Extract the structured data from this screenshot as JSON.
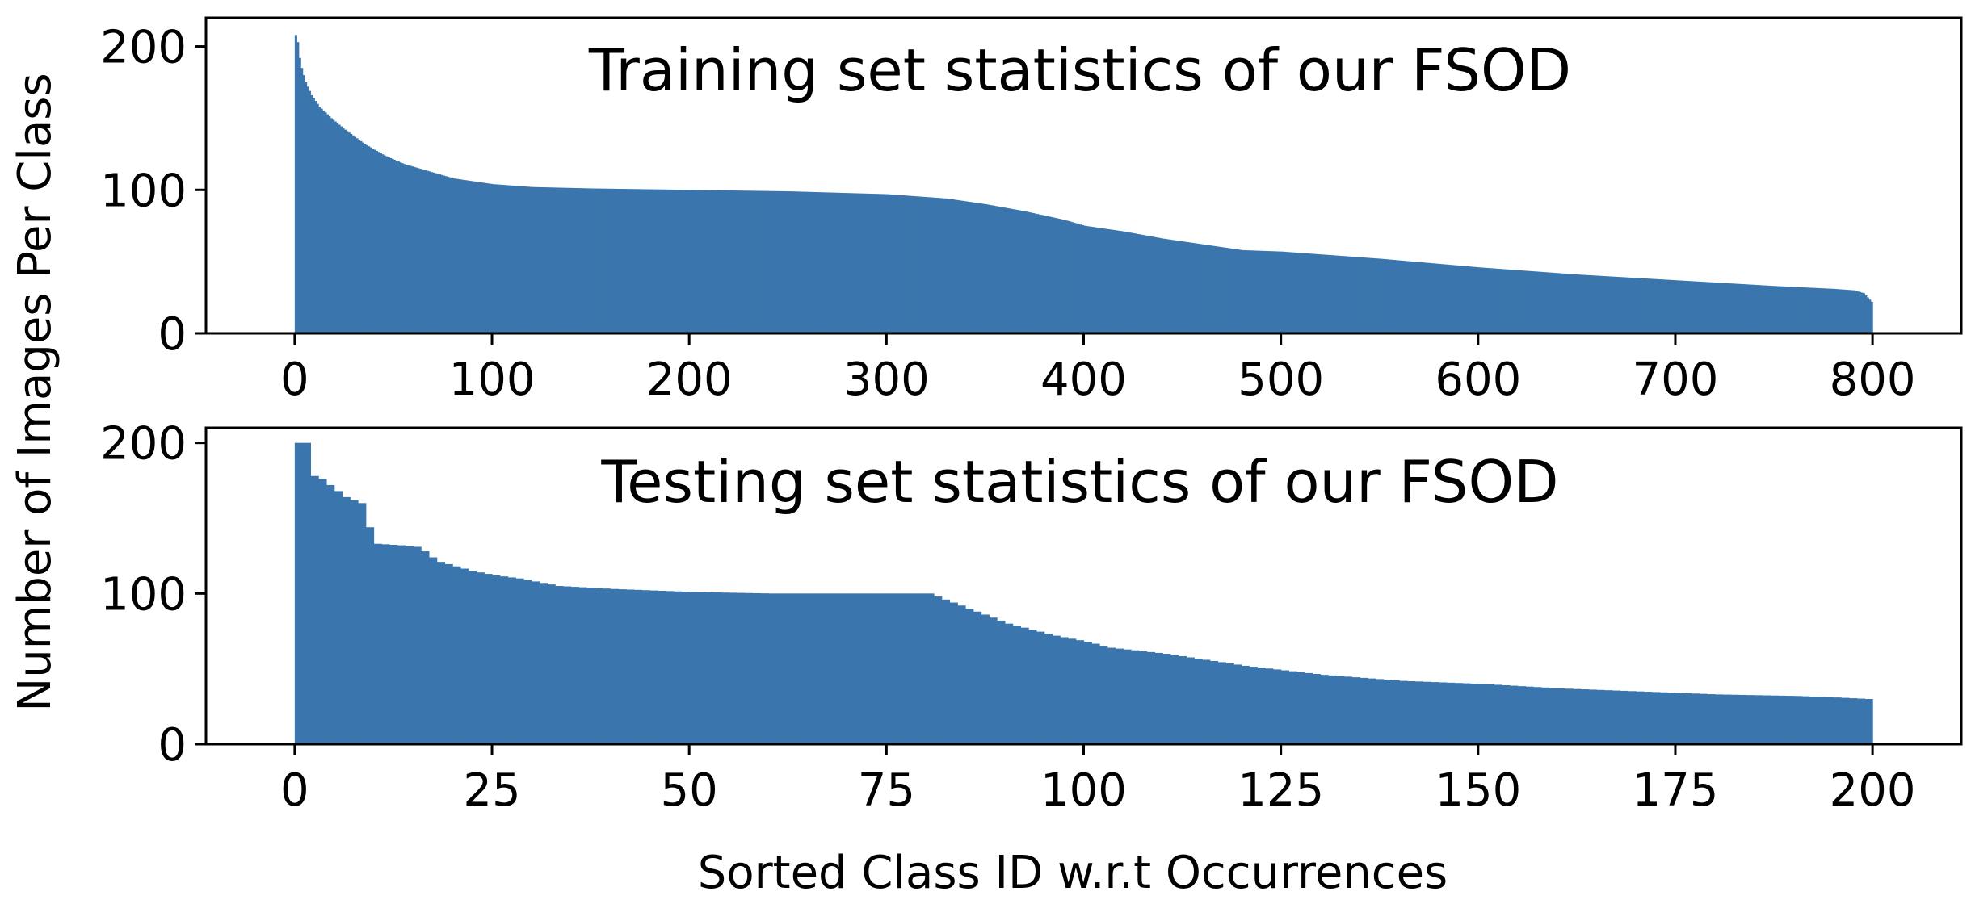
{
  "colors": {
    "bar": "#3a76ad",
    "axis": "#000000",
    "background": "#ffffff"
  },
  "figure": {
    "shared_ylabel": "Number of Images Per Class",
    "xlabel": "Sorted Class ID w.r.t Occurrences"
  },
  "chart_data": [
    {
      "type": "bar",
      "title": "Training set statistics of our FSOD",
      "xlabel": "Sorted Class ID w.r.t Occurrences",
      "ylabel": "Number of Images Per Class",
      "xlim": [
        -45,
        845
      ],
      "ylim": [
        0,
        220
      ],
      "xticks": [
        0,
        100,
        200,
        300,
        400,
        500,
        600,
        700,
        800
      ],
      "yticks": [
        0,
        100,
        200
      ],
      "grid": false,
      "legend": "none",
      "n_bars": 800,
      "profile": [
        [
          0,
          208
        ],
        [
          1,
          203
        ],
        [
          2,
          192
        ],
        [
          3,
          185
        ],
        [
          5,
          175
        ],
        [
          8,
          166
        ],
        [
          12,
          158
        ],
        [
          18,
          150
        ],
        [
          25,
          142
        ],
        [
          35,
          132
        ],
        [
          45,
          124
        ],
        [
          55,
          118
        ],
        [
          65,
          114
        ],
        [
          80,
          108
        ],
        [
          100,
          104
        ],
        [
          120,
          102
        ],
        [
          150,
          101
        ],
        [
          200,
          100
        ],
        [
          250,
          99
        ],
        [
          300,
          97
        ],
        [
          330,
          94
        ],
        [
          350,
          90
        ],
        [
          370,
          85
        ],
        [
          390,
          79
        ],
        [
          400,
          75
        ],
        [
          420,
          71
        ],
        [
          440,
          66
        ],
        [
          460,
          62
        ],
        [
          480,
          58
        ],
        [
          500,
          57
        ],
        [
          550,
          52
        ],
        [
          600,
          46
        ],
        [
          650,
          41
        ],
        [
          700,
          37
        ],
        [
          750,
          33
        ],
        [
          780,
          31
        ],
        [
          790,
          30
        ],
        [
          795,
          28
        ],
        [
          797,
          25
        ],
        [
          799,
          22
        ]
      ]
    },
    {
      "type": "bar",
      "title": "Testing set statistics of our FSOD",
      "xlabel": "Sorted Class ID w.r.t Occurrences",
      "ylabel": "Number of Images Per Class",
      "xlim": [
        -11.25,
        211.25
      ],
      "ylim": [
        0,
        210
      ],
      "xticks": [
        0,
        25,
        50,
        75,
        100,
        125,
        150,
        175,
        200
      ],
      "yticks": [
        0,
        100,
        200
      ],
      "grid": false,
      "legend": "none",
      "n_bars": 200,
      "profile": [
        [
          0,
          200
        ],
        [
          1,
          200
        ],
        [
          2,
          178
        ],
        [
          3,
          176
        ],
        [
          4,
          172
        ],
        [
          5,
          168
        ],
        [
          6,
          164
        ],
        [
          7,
          162
        ],
        [
          8,
          160
        ],
        [
          9,
          144
        ],
        [
          10,
          133
        ],
        [
          13,
          132
        ],
        [
          15,
          131
        ],
        [
          16,
          128
        ],
        [
          17,
          124
        ],
        [
          18,
          121
        ],
        [
          20,
          118
        ],
        [
          22,
          115
        ],
        [
          25,
          112
        ],
        [
          28,
          110
        ],
        [
          30,
          108
        ],
        [
          33,
          105
        ],
        [
          40,
          103
        ],
        [
          50,
          101
        ],
        [
          60,
          100
        ],
        [
          80,
          100
        ],
        [
          82,
          96
        ],
        [
          84,
          92
        ],
        [
          86,
          88
        ],
        [
          88,
          84
        ],
        [
          90,
          80
        ],
        [
          93,
          76
        ],
        [
          96,
          72
        ],
        [
          100,
          68
        ],
        [
          103,
          64
        ],
        [
          110,
          60
        ],
        [
          115,
          56
        ],
        [
          120,
          52
        ],
        [
          125,
          49
        ],
        [
          130,
          46
        ],
        [
          135,
          44
        ],
        [
          140,
          42
        ],
        [
          150,
          40
        ],
        [
          160,
          37
        ],
        [
          170,
          35
        ],
        [
          180,
          33
        ],
        [
          190,
          32
        ],
        [
          195,
          31
        ],
        [
          199,
          30
        ]
      ]
    }
  ]
}
